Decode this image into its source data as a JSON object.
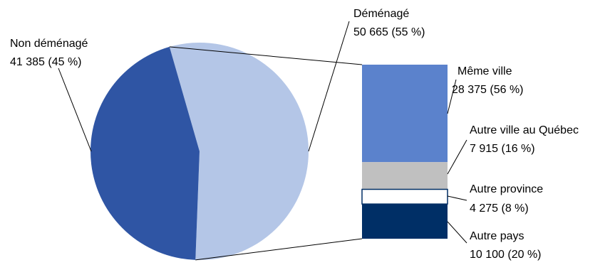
{
  "chart_data": {
    "type": "pie",
    "title": "",
    "pie": {
      "slices": [
        {
          "label": "Non déménagé",
          "value": 41385,
          "pct_text": "41 385 (45 %)",
          "color": "#2f55a4"
        },
        {
          "label": "Déménagé",
          "value": 50665,
          "pct_text": "50 665 (55 %)",
          "color": "#b4c6e7"
        }
      ]
    },
    "breakdown_of": "Déménagé",
    "bar": {
      "segments": [
        {
          "label": "Même ville",
          "value": 28375,
          "pct_text": "28 375 (56 %)",
          "color": "#5b82cc"
        },
        {
          "label": "Autre ville au Québec",
          "value": 7915,
          "pct_text": "7 915 (16 %)",
          "color": "#c0c0c0"
        },
        {
          "label": "Autre province",
          "value": 4275,
          "pct_text": "4 275 (8 %)",
          "color": "#ffffff"
        },
        {
          "label": "Autre pays",
          "value": 10100,
          "pct_text": "10 100 (20 %)",
          "color": "#002f66"
        }
      ]
    }
  }
}
